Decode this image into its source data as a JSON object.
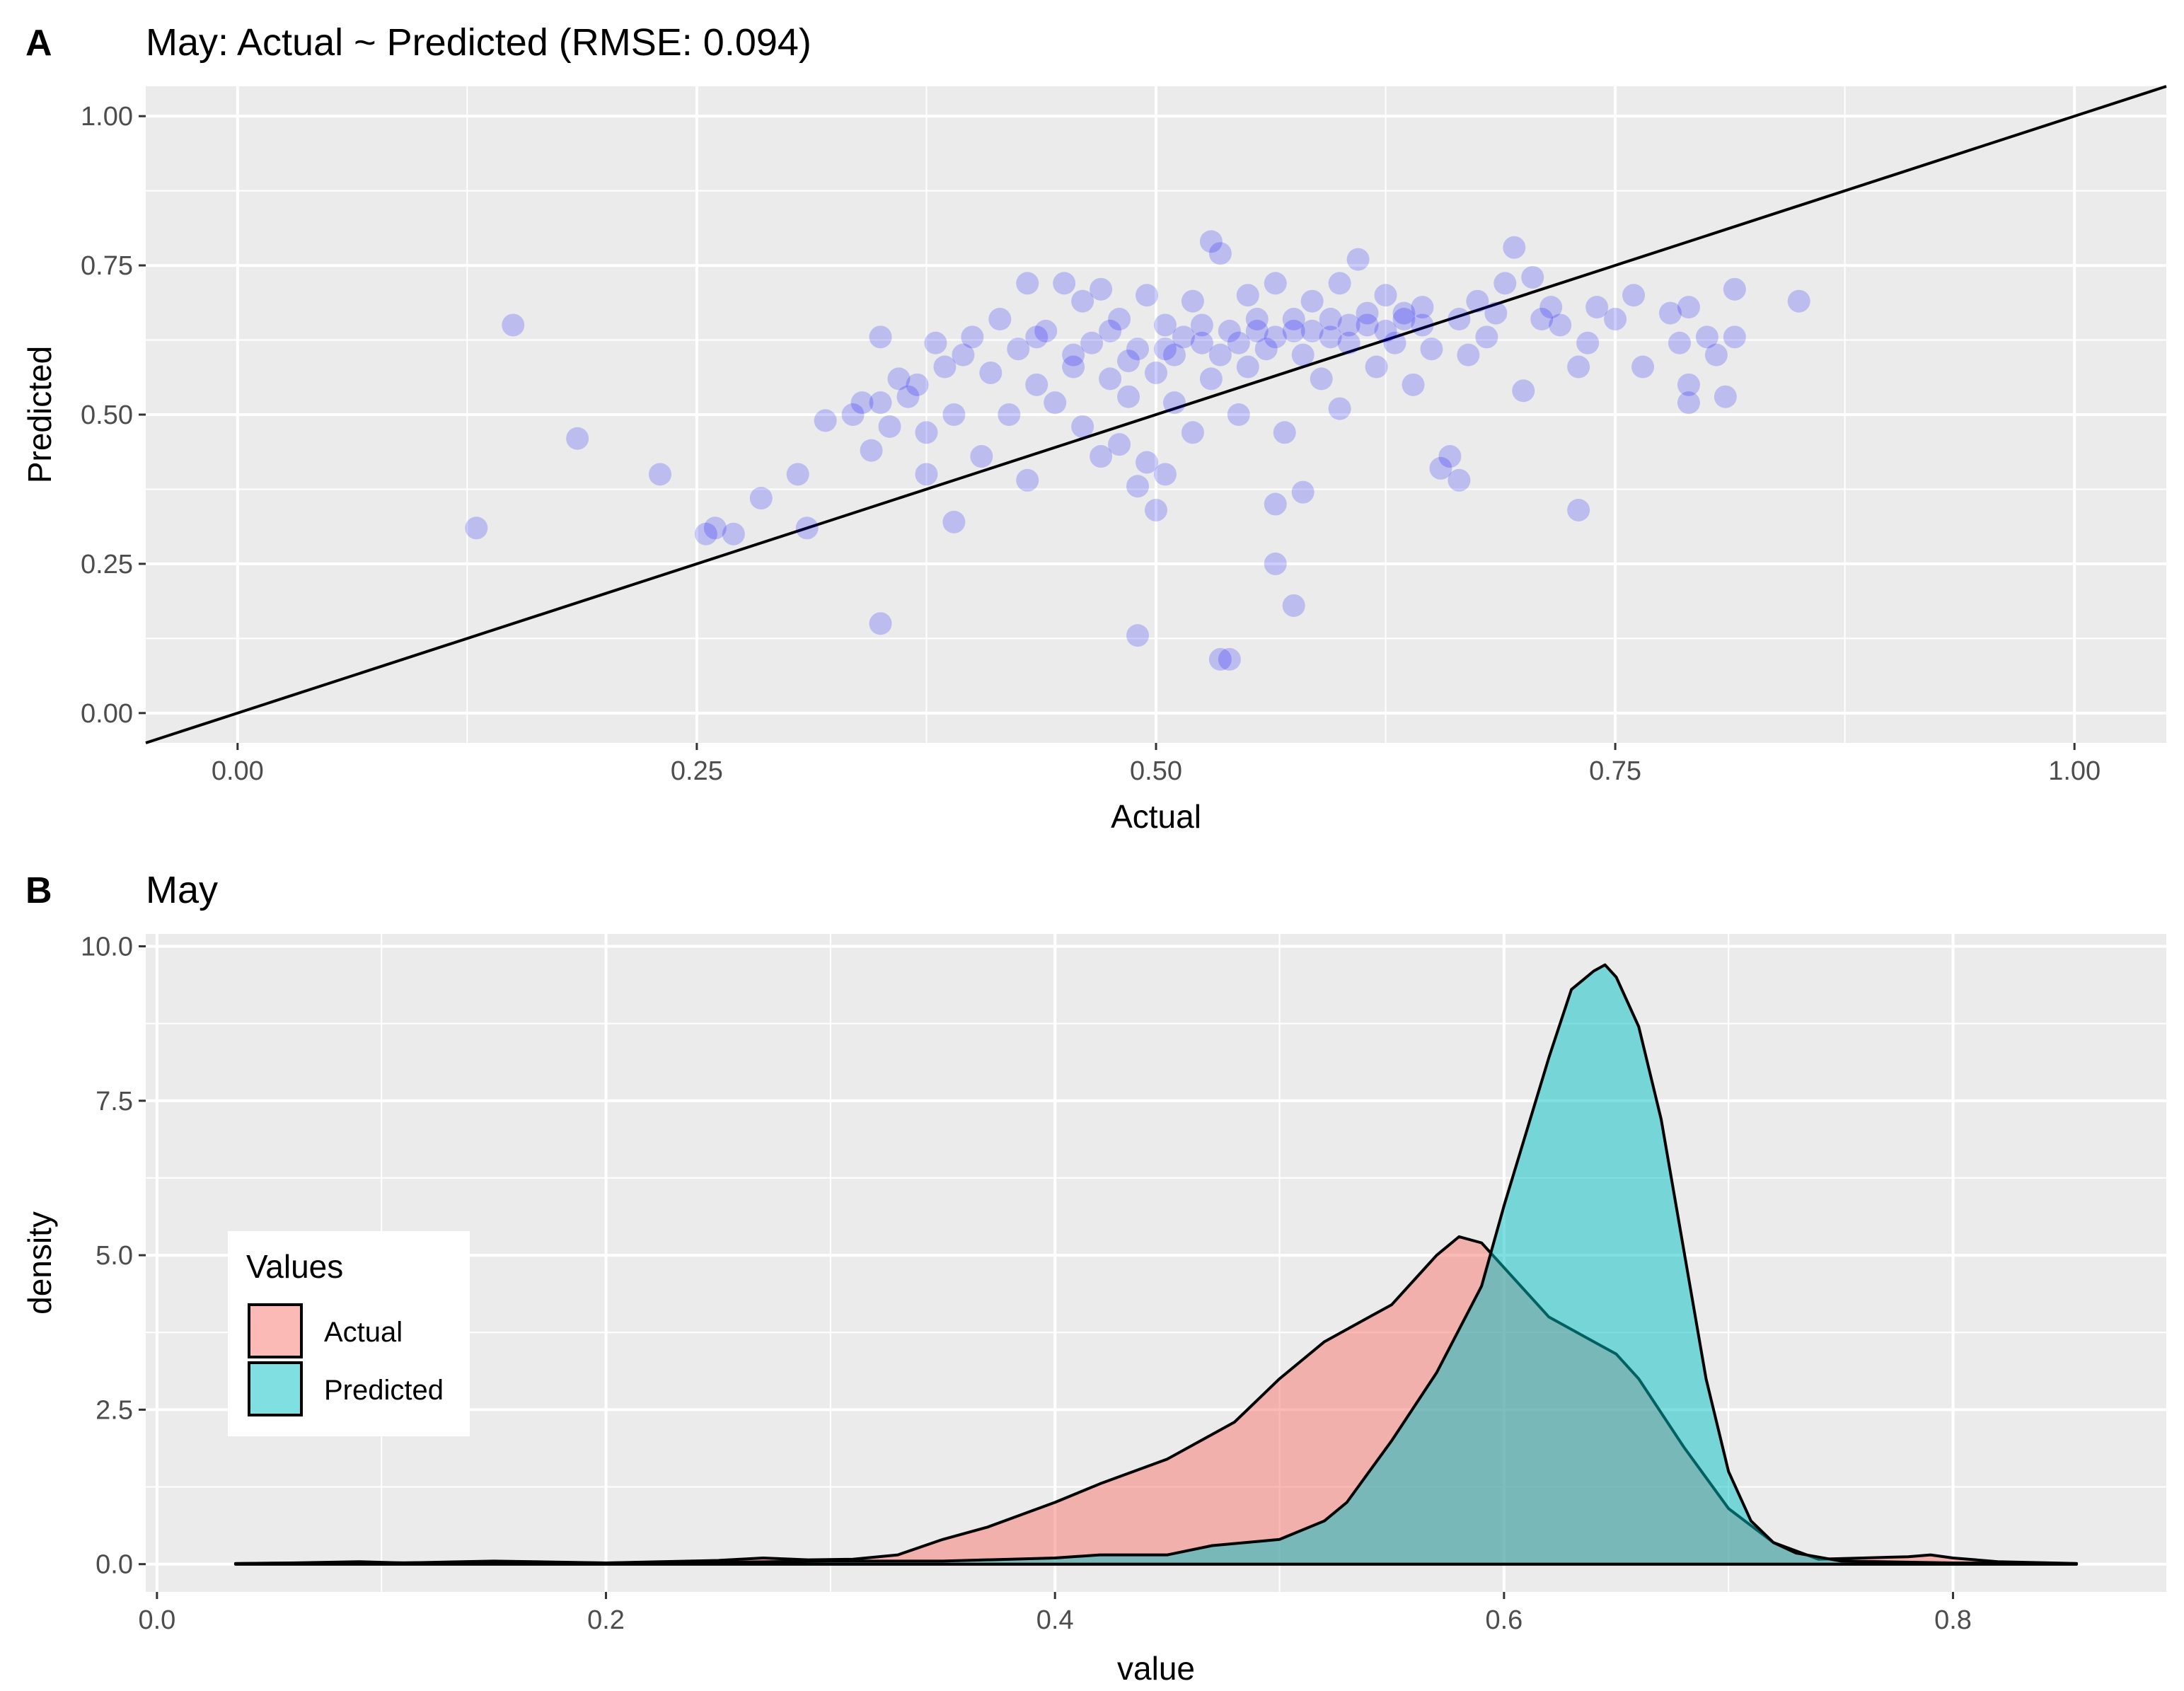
{
  "panels": {
    "a": {
      "letter": "A",
      "title": "May: Actual ~ Predicted (RMSE: 0.094)"
    },
    "b": {
      "letter": "B",
      "title": "May"
    }
  },
  "chart_data": [
    {
      "type": "scatter",
      "title": "May: Actual ~ Predicted (RMSE: 0.094)",
      "panel_letter": "A",
      "xlabel": "Actual",
      "ylabel": "Predicted",
      "xlim": [
        -0.05,
        1.05
      ],
      "ylim": [
        -0.05,
        1.05
      ],
      "x_ticks": [
        0.0,
        0.25,
        0.5,
        0.75,
        1.0
      ],
      "x_tick_labels": [
        "0.00",
        "0.25",
        "0.50",
        "0.75",
        "1.00"
      ],
      "y_ticks": [
        0.0,
        0.25,
        0.5,
        0.75,
        1.0
      ],
      "y_tick_labels": [
        "0.00",
        "0.25",
        "0.50",
        "0.75",
        "1.00"
      ],
      "grid": true,
      "reference_line": {
        "slope": 1,
        "intercept": 0,
        "color": "#000000"
      },
      "point_color": "#0000ff",
      "point_alpha": 0.2,
      "points": [
        [
          0.13,
          0.31
        ],
        [
          0.15,
          0.65
        ],
        [
          0.185,
          0.46
        ],
        [
          0.23,
          0.4
        ],
        [
          0.255,
          0.3
        ],
        [
          0.26,
          0.31
        ],
        [
          0.27,
          0.3
        ],
        [
          0.285,
          0.36
        ],
        [
          0.305,
          0.4
        ],
        [
          0.31,
          0.31
        ],
        [
          0.32,
          0.49
        ],
        [
          0.335,
          0.5
        ],
        [
          0.34,
          0.52
        ],
        [
          0.345,
          0.44
        ],
        [
          0.35,
          0.63
        ],
        [
          0.35,
          0.15
        ],
        [
          0.35,
          0.52
        ],
        [
          0.355,
          0.48
        ],
        [
          0.36,
          0.56
        ],
        [
          0.365,
          0.53
        ],
        [
          0.37,
          0.55
        ],
        [
          0.375,
          0.4
        ],
        [
          0.375,
          0.47
        ],
        [
          0.38,
          0.62
        ],
        [
          0.385,
          0.58
        ],
        [
          0.39,
          0.32
        ],
        [
          0.39,
          0.5
        ],
        [
          0.395,
          0.6
        ],
        [
          0.4,
          0.63
        ],
        [
          0.405,
          0.43
        ],
        [
          0.41,
          0.57
        ],
        [
          0.415,
          0.66
        ],
        [
          0.42,
          0.5
        ],
        [
          0.425,
          0.61
        ],
        [
          0.43,
          0.39
        ],
        [
          0.43,
          0.72
        ],
        [
          0.435,
          0.55
        ],
        [
          0.44,
          0.64
        ],
        [
          0.445,
          0.52
        ],
        [
          0.45,
          0.72
        ],
        [
          0.455,
          0.58
        ],
        [
          0.46,
          0.69
        ],
        [
          0.46,
          0.48
        ],
        [
          0.465,
          0.62
        ],
        [
          0.47,
          0.43
        ],
        [
          0.47,
          0.71
        ],
        [
          0.475,
          0.56
        ],
        [
          0.48,
          0.45
        ],
        [
          0.48,
          0.66
        ],
        [
          0.485,
          0.53
        ],
        [
          0.49,
          0.38
        ],
        [
          0.49,
          0.61
        ],
        [
          0.495,
          0.7
        ],
        [
          0.495,
          0.42
        ],
        [
          0.5,
          0.57
        ],
        [
          0.5,
          0.34
        ],
        [
          0.505,
          0.4
        ],
        [
          0.505,
          0.65
        ],
        [
          0.51,
          0.6
        ],
        [
          0.51,
          0.52
        ],
        [
          0.49,
          0.13
        ],
        [
          0.52,
          0.69
        ],
        [
          0.52,
          0.47
        ],
        [
          0.525,
          0.62
        ],
        [
          0.53,
          0.79
        ],
        [
          0.53,
          0.56
        ],
        [
          0.535,
          0.09
        ],
        [
          0.535,
          0.77
        ],
        [
          0.54,
          0.09
        ],
        [
          0.54,
          0.64
        ],
        [
          0.545,
          0.5
        ],
        [
          0.55,
          0.7
        ],
        [
          0.55,
          0.58
        ],
        [
          0.555,
          0.66
        ],
        [
          0.56,
          0.61
        ],
        [
          0.565,
          0.35
        ],
        [
          0.565,
          0.25
        ],
        [
          0.565,
          0.72
        ],
        [
          0.57,
          0.47
        ],
        [
          0.575,
          0.18
        ],
        [
          0.575,
          0.64
        ],
        [
          0.58,
          0.37
        ],
        [
          0.58,
          0.6
        ],
        [
          0.585,
          0.69
        ],
        [
          0.59,
          0.56
        ],
        [
          0.595,
          0.66
        ],
        [
          0.6,
          0.51
        ],
        [
          0.6,
          0.72
        ],
        [
          0.605,
          0.62
        ],
        [
          0.61,
          0.76
        ],
        [
          0.615,
          0.65
        ],
        [
          0.62,
          0.58
        ],
        [
          0.625,
          0.7
        ],
        [
          0.63,
          0.62
        ],
        [
          0.635,
          0.67
        ],
        [
          0.64,
          0.55
        ],
        [
          0.645,
          0.68
        ],
        [
          0.65,
          0.61
        ],
        [
          0.655,
          0.41
        ],
        [
          0.66,
          0.43
        ],
        [
          0.665,
          0.39
        ],
        [
          0.665,
          0.66
        ],
        [
          0.67,
          0.6
        ],
        [
          0.675,
          0.69
        ],
        [
          0.68,
          0.63
        ],
        [
          0.685,
          0.67
        ],
        [
          0.69,
          0.72
        ],
        [
          0.695,
          0.78
        ],
        [
          0.7,
          0.54
        ],
        [
          0.705,
          0.73
        ],
        [
          0.71,
          0.66
        ],
        [
          0.715,
          0.68
        ],
        [
          0.72,
          0.65
        ],
        [
          0.73,
          0.34
        ],
        [
          0.73,
          0.58
        ],
        [
          0.735,
          0.62
        ],
        [
          0.74,
          0.68
        ],
        [
          0.75,
          0.66
        ],
        [
          0.76,
          0.7
        ],
        [
          0.765,
          0.58
        ],
        [
          0.78,
          0.67
        ],
        [
          0.785,
          0.62
        ],
        [
          0.79,
          0.68
        ],
        [
          0.79,
          0.55
        ],
        [
          0.79,
          0.52
        ],
        [
          0.8,
          0.63
        ],
        [
          0.805,
          0.6
        ],
        [
          0.81,
          0.53
        ],
        [
          0.815,
          0.71
        ],
        [
          0.815,
          0.63
        ],
        [
          0.85,
          0.69
        ],
        [
          0.435,
          0.63
        ],
        [
          0.455,
          0.6
        ],
        [
          0.475,
          0.64
        ],
        [
          0.485,
          0.59
        ],
        [
          0.505,
          0.61
        ],
        [
          0.515,
          0.63
        ],
        [
          0.525,
          0.65
        ],
        [
          0.535,
          0.6
        ],
        [
          0.545,
          0.62
        ],
        [
          0.555,
          0.64
        ],
        [
          0.565,
          0.63
        ],
        [
          0.575,
          0.66
        ],
        [
          0.585,
          0.64
        ],
        [
          0.595,
          0.63
        ],
        [
          0.605,
          0.65
        ],
        [
          0.615,
          0.67
        ],
        [
          0.625,
          0.64
        ],
        [
          0.635,
          0.66
        ],
        [
          0.645,
          0.65
        ]
      ]
    },
    {
      "type": "area",
      "subtype": "density",
      "title": "May",
      "panel_letter": "B",
      "xlabel": "value",
      "ylabel": "density",
      "xlim": [
        -0.005,
        0.895
      ],
      "ylim": [
        -0.45,
        10.2
      ],
      "x_ticks": [
        0.0,
        0.2,
        0.4,
        0.6,
        0.8
      ],
      "x_tick_labels": [
        "0.0",
        "0.2",
        "0.4",
        "0.6",
        "0.8"
      ],
      "y_ticks": [
        0.0,
        2.5,
        5.0,
        7.5,
        10.0
      ],
      "y_tick_labels": [
        "0.0",
        "2.5",
        "5.0",
        "7.5",
        "10.0"
      ],
      "grid": true,
      "legend": {
        "title": "Values",
        "position": "left"
      },
      "series": [
        {
          "name": "Actual",
          "color": "#f8766d",
          "alpha": 0.5,
          "x": [
            0.035,
            0.06,
            0.09,
            0.11,
            0.15,
            0.2,
            0.25,
            0.27,
            0.29,
            0.31,
            0.33,
            0.35,
            0.37,
            0.4,
            0.42,
            0.45,
            0.48,
            0.5,
            0.52,
            0.54,
            0.55,
            0.56,
            0.57,
            0.58,
            0.59,
            0.6,
            0.62,
            0.64,
            0.65,
            0.66,
            0.68,
            0.7,
            0.72,
            0.74,
            0.76,
            0.78,
            0.79,
            0.8,
            0.82,
            0.855
          ],
          "y": [
            0.01,
            0.02,
            0.04,
            0.02,
            0.05,
            0.02,
            0.06,
            0.1,
            0.07,
            0.08,
            0.15,
            0.4,
            0.6,
            1.0,
            1.3,
            1.7,
            2.3,
            3.0,
            3.6,
            4.0,
            4.2,
            4.6,
            5.0,
            5.3,
            5.2,
            4.8,
            4.0,
            3.6,
            3.4,
            3.0,
            1.9,
            0.9,
            0.35,
            0.08,
            0.1,
            0.12,
            0.15,
            0.1,
            0.04,
            0.01
          ]
        },
        {
          "name": "Predicted",
          "color": "#00bfc4",
          "alpha": 0.5,
          "x": [
            0.035,
            0.1,
            0.15,
            0.2,
            0.25,
            0.3,
            0.35,
            0.4,
            0.42,
            0.45,
            0.47,
            0.5,
            0.52,
            0.53,
            0.54,
            0.55,
            0.57,
            0.59,
            0.6,
            0.61,
            0.62,
            0.63,
            0.64,
            0.645,
            0.65,
            0.66,
            0.67,
            0.68,
            0.69,
            0.7,
            0.71,
            0.72,
            0.73,
            0.75,
            0.8,
            0.855
          ],
          "y": [
            0.01,
            0.02,
            0.03,
            0.02,
            0.03,
            0.05,
            0.05,
            0.1,
            0.15,
            0.15,
            0.3,
            0.4,
            0.7,
            1.0,
            1.5,
            2.0,
            3.1,
            4.5,
            5.8,
            7.0,
            8.2,
            9.3,
            9.6,
            9.7,
            9.5,
            8.7,
            7.2,
            5.1,
            3.0,
            1.5,
            0.7,
            0.35,
            0.18,
            0.05,
            0.02,
            0.01
          ]
        }
      ]
    }
  ]
}
